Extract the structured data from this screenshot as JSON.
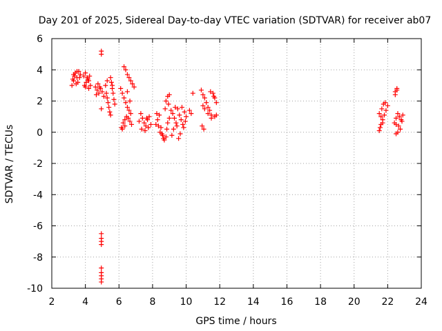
{
  "chart_data": {
    "type": "scatter",
    "title": "Day 201 of 2025, Sidereal Day-to-day VTEC variation (SDTVAR) for receiver ab07",
    "xlabel": "GPS time / hours",
    "ylabel": "SDTVAR / TECUs",
    "xlim": [
      2,
      24
    ],
    "ylim": [
      -10,
      6
    ],
    "xticks": [
      2,
      4,
      6,
      8,
      10,
      12,
      14,
      16,
      18,
      20,
      22,
      24
    ],
    "yticks": [
      -10,
      -8,
      -6,
      -4,
      -2,
      0,
      2,
      4,
      6
    ],
    "grid": true,
    "marker": "+",
    "color": "#ff0000",
    "series": [
      {
        "name": "SDTVAR",
        "x": [
          3.2,
          3.3,
          3.35,
          3.4,
          3.5,
          3.55,
          3.6,
          3.7,
          3.25,
          3.45,
          3.65,
          3.3,
          3.5,
          3.9,
          4.0,
          4.1,
          4.2,
          4.3,
          3.95,
          4.05,
          4.15,
          4.25,
          4.0,
          4.2,
          4.6,
          4.7,
          4.8,
          4.9,
          5.0,
          5.1,
          4.65,
          4.75,
          4.85,
          4.95,
          5.2,
          5.25,
          5.3,
          5.35,
          5.4,
          5.45,
          5.5,
          5.55,
          5.6,
          5.65,
          5.7,
          5.3,
          5.5,
          5.6,
          5.75,
          4.95,
          4.95,
          4.95,
          4.95,
          4.95,
          4.95,
          4.95,
          4.95,
          4.95,
          4.95,
          4.95,
          6.3,
          6.4,
          6.5,
          6.6,
          6.7,
          6.8,
          6.9,
          6.1,
          6.2,
          6.3,
          6.4,
          6.5,
          6.6,
          6.7,
          6.15,
          6.25,
          6.35,
          6.45,
          6.55,
          6.65,
          6.75,
          6.2,
          6.35,
          6.5,
          6.65,
          7.3,
          7.4,
          7.5,
          7.6,
          7.7,
          7.8,
          7.9,
          7.35,
          7.55,
          7.75,
          7.2,
          7.65,
          8.2,
          8.3,
          8.4,
          8.5,
          8.6,
          8.7,
          8.8,
          8.9,
          9.0,
          8.25,
          8.45,
          8.65,
          8.85,
          8.8,
          8.9,
          9.0,
          8.75,
          8.95,
          8.35,
          8.55,
          9.1,
          9.2,
          9.3,
          9.4,
          9.5,
          9.6,
          9.7,
          9.8,
          9.9,
          10.0,
          9.25,
          9.45,
          9.65,
          9.85,
          9.15,
          9.55,
          9.95,
          9.35,
          9.75,
          10.2,
          10.3,
          10.4,
          10.9,
          11.0,
          11.1,
          11.2,
          11.3,
          11.4,
          11.5,
          11.6,
          11.7,
          11.8,
          11.0,
          11.1,
          11.3,
          11.5,
          11.7,
          10.95,
          11.05,
          11.45,
          11.65,
          11.8,
          21.5,
          21.6,
          21.7,
          21.8,
          21.9,
          22.0,
          21.55,
          21.65,
          21.75,
          21.85,
          21.5,
          21.6,
          21.7,
          22.4,
          22.5,
          22.6,
          22.7,
          22.8,
          22.9,
          22.45,
          22.55,
          22.65,
          22.75,
          22.85,
          22.5,
          22.6,
          22.55,
          22.45,
          22.5
        ],
        "y": [
          3.0,
          3.3,
          3.6,
          3.8,
          3.5,
          3.2,
          3.9,
          3.7,
          3.4,
          3.1,
          3.5,
          3.7,
          3.9,
          3.6,
          3.8,
          3.5,
          3.3,
          3.0,
          3.0,
          3.2,
          3.4,
          3.6,
          2.9,
          2.8,
          2.9,
          2.7,
          2.5,
          2.8,
          2.6,
          2.3,
          2.4,
          3.1,
          2.9,
          1.5,
          3.0,
          2.5,
          2.2,
          1.9,
          1.6,
          1.3,
          1.1,
          3.2,
          2.8,
          2.5,
          2.1,
          3.3,
          3.5,
          3.0,
          1.8,
          5.2,
          5.0,
          -6.5,
          -6.8,
          -7.0,
          -7.2,
          -8.7,
          -9.0,
          -9.2,
          -9.4,
          -9.6,
          4.2,
          4.0,
          3.7,
          3.5,
          3.3,
          3.1,
          2.9,
          2.8,
          2.5,
          2.2,
          1.9,
          1.6,
          1.4,
          1.2,
          0.3,
          0.6,
          0.8,
          1.0,
          0.9,
          0.7,
          0.5,
          0.2,
          0.4,
          2.6,
          2.0,
          1.2,
          0.9,
          0.6,
          0.4,
          0.8,
          1.0,
          0.5,
          0.2,
          0.1,
          0.3,
          0.7,
          0.9,
          0.5,
          0.8,
          1.1,
          0.3,
          -0.2,
          -0.5,
          -0.3,
          0.6,
          0.9,
          1.2,
          0.0,
          -0.4,
          0.2,
          2.0,
          2.3,
          2.4,
          1.5,
          1.8,
          0.4,
          -0.1,
          1.4,
          1.2,
          0.9,
          0.6,
          1.5,
          1.1,
          0.8,
          0.5,
          1.3,
          1.0,
          0.2,
          0.4,
          -0.1,
          0.3,
          -0.2,
          -0.4,
          0.7,
          1.6,
          1.6,
          1.4,
          1.2,
          2.5,
          2.7,
          2.4,
          2.2,
          1.9,
          1.6,
          1.4,
          1.1,
          2.5,
          2.2,
          1.9,
          1.7,
          1.5,
          1.2,
          0.9,
          1.0,
          0.4,
          0.2,
          2.6,
          2.3,
          1.1,
          0.1,
          0.5,
          0.8,
          1.1,
          1.4,
          1.7,
          0.3,
          1.5,
          1.8,
          1.9,
          1.2,
          1.0,
          0.6,
          0.6,
          0.9,
          1.2,
          1.0,
          0.8,
          1.1,
          2.6,
          2.7,
          0.4,
          0.2,
          0.7,
          -0.1,
          0.0,
          2.8,
          2.4,
          0.5
        ]
      }
    ]
  }
}
